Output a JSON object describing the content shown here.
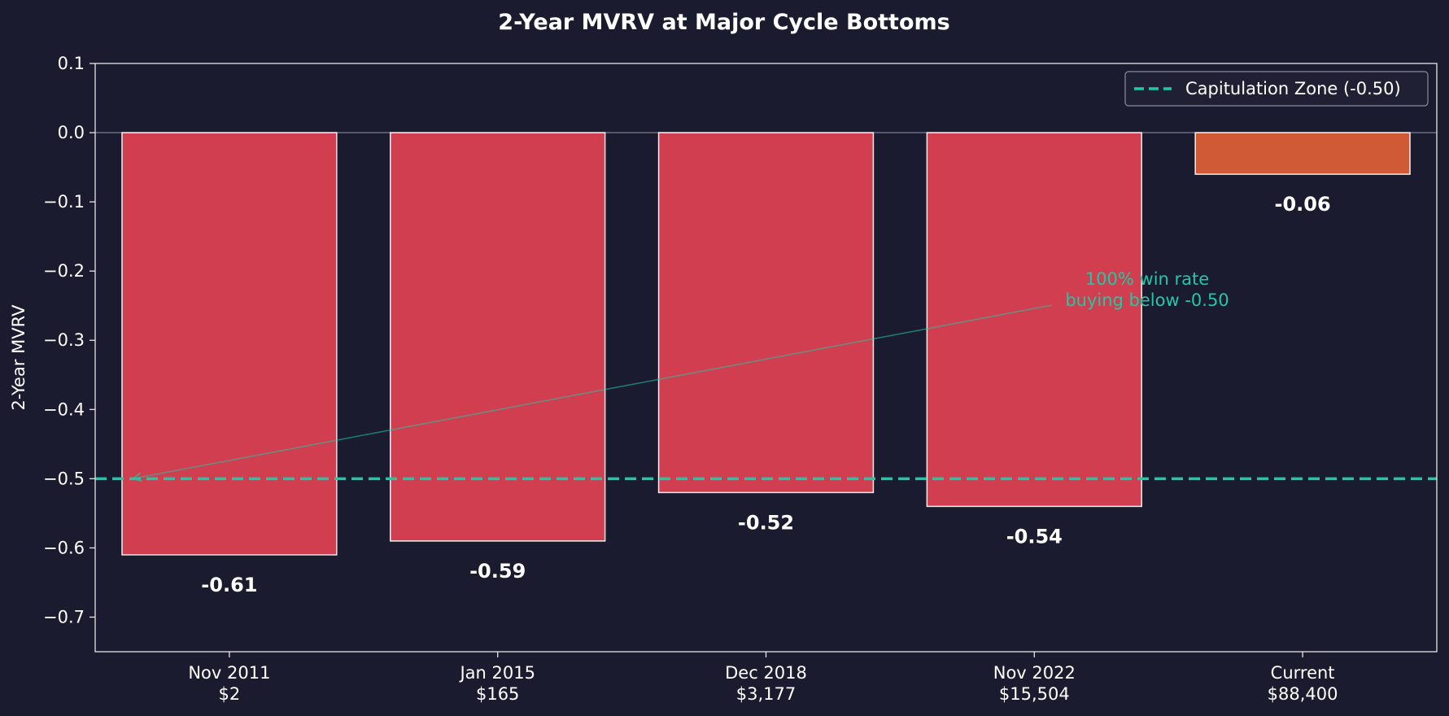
{
  "chart_data": {
    "type": "bar",
    "title": "2-Year MVRV at Major Cycle Bottoms",
    "xlabel": "",
    "ylabel": "2-Year MVRV",
    "ylim": [
      -0.75,
      0.1
    ],
    "yticks": [
      0.1,
      0.0,
      -0.1,
      -0.2,
      -0.3,
      -0.4,
      -0.5,
      -0.6,
      -0.7
    ],
    "ytick_labels": [
      "0.1",
      "0.0",
      "−0.1",
      "−0.2",
      "−0.3",
      "−0.4",
      "−0.5",
      "−0.6",
      "−0.7"
    ],
    "categories": [
      {
        "line1": "Nov 2011",
        "line2": "$2"
      },
      {
        "line1": "Jan 2015",
        "line2": "$165"
      },
      {
        "line1": "Dec 2018",
        "line2": "$3,177"
      },
      {
        "line1": "Nov 2022",
        "line2": "$15,504"
      },
      {
        "line1": "Current",
        "line2": "$88,400"
      }
    ],
    "values": [
      -0.61,
      -0.59,
      -0.52,
      -0.54,
      -0.06
    ],
    "value_labels": [
      "-0.61",
      "-0.59",
      "-0.52",
      "-0.54",
      "-0.06"
    ],
    "bar_colors": [
      "#d03e50",
      "#d03e50",
      "#d03e50",
      "#d03e50",
      "#d05a35"
    ],
    "reference_line": {
      "y": -0.5,
      "color": "#1fc9a6",
      "style": "dashed"
    },
    "legend": {
      "placement": "top-right",
      "entries": [
        "Capitulation Zone (-0.50)"
      ]
    },
    "annotation": {
      "lines": [
        "100% win rate",
        "buying below -0.50"
      ],
      "color": "#1fc9a6",
      "arrow_target": {
        "x": "Nov 2011 (left of bar)",
        "y": -0.5
      }
    },
    "grid": false,
    "zero_line": true
  },
  "colors": {
    "background": "#1a1b2e",
    "axes": "#e6e6e6",
    "accent": "#1fc9a6",
    "bar_edge": "#f0f0f0"
  }
}
